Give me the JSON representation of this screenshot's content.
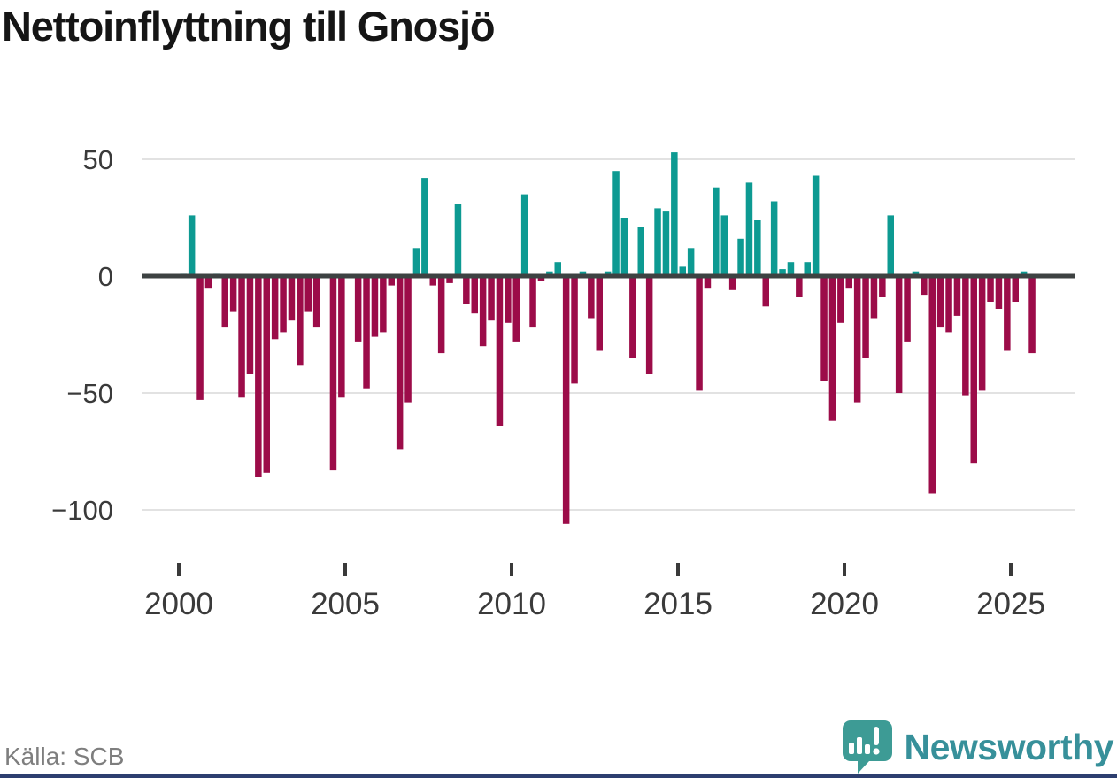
{
  "header": {
    "title": "Nettoinflyttning till Gnosjö"
  },
  "footer": {
    "source": "Källa: SCB",
    "brand": "Newsworthy",
    "brand_color": "#37909a",
    "logo_color": "#3d9b95",
    "bottom_bar_color": "#2d3e6f"
  },
  "chart_data": {
    "type": "bar",
    "title": "Nettoinflyttning till Gnosjö",
    "freq": "quarterly",
    "start": "2000Q1",
    "end": "2025Q3",
    "values": [
      1,
      26,
      -53,
      -5,
      1,
      -22,
      -15,
      -52,
      -42,
      -86,
      -84,
      -27,
      -24,
      -19,
      -38,
      -15,
      -22,
      0,
      -83,
      -52,
      0,
      -28,
      -48,
      -26,
      -24,
      -4,
      -74,
      -54,
      12,
      42,
      -4,
      -33,
      -3,
      31,
      -12,
      -16,
      -30,
      -19,
      -64,
      -20,
      -28,
      35,
      -22,
      -2,
      2,
      6,
      -106,
      -46,
      2,
      -18,
      -32,
      2,
      45,
      25,
      -35,
      21,
      -42,
      29,
      28,
      53,
      4,
      12,
      -49,
      -5,
      38,
      26,
      -6,
      16,
      40,
      24,
      -13,
      32,
      3,
      6,
      -9,
      6,
      43,
      -45,
      -62,
      -20,
      -5,
      -54,
      -35,
      -18,
      -9,
      26,
      -50,
      -28,
      2,
      -8,
      -93,
      -22,
      -24,
      -17,
      -51,
      -80,
      -49,
      -11,
      -14,
      -32,
      -11,
      2,
      -33
    ],
    "y_ticks": [
      {
        "value": 50,
        "label": "50"
      },
      {
        "value": 0,
        "label": "0"
      },
      {
        "value": -50,
        "label": "−50"
      },
      {
        "value": -100,
        "label": "−100"
      }
    ],
    "x_ticks": [
      "2000",
      "2005",
      "2010",
      "2015",
      "2020",
      "2025"
    ],
    "ylim": [
      -115,
      60
    ],
    "grid": "horizontal",
    "legend": "none",
    "positive_color": "#0d9a92",
    "negative_color": "#9c0c49",
    "axis_color": "#3d4242",
    "grid_color": "#e2e2e2",
    "tick_label_color": "#3a3a3a"
  }
}
